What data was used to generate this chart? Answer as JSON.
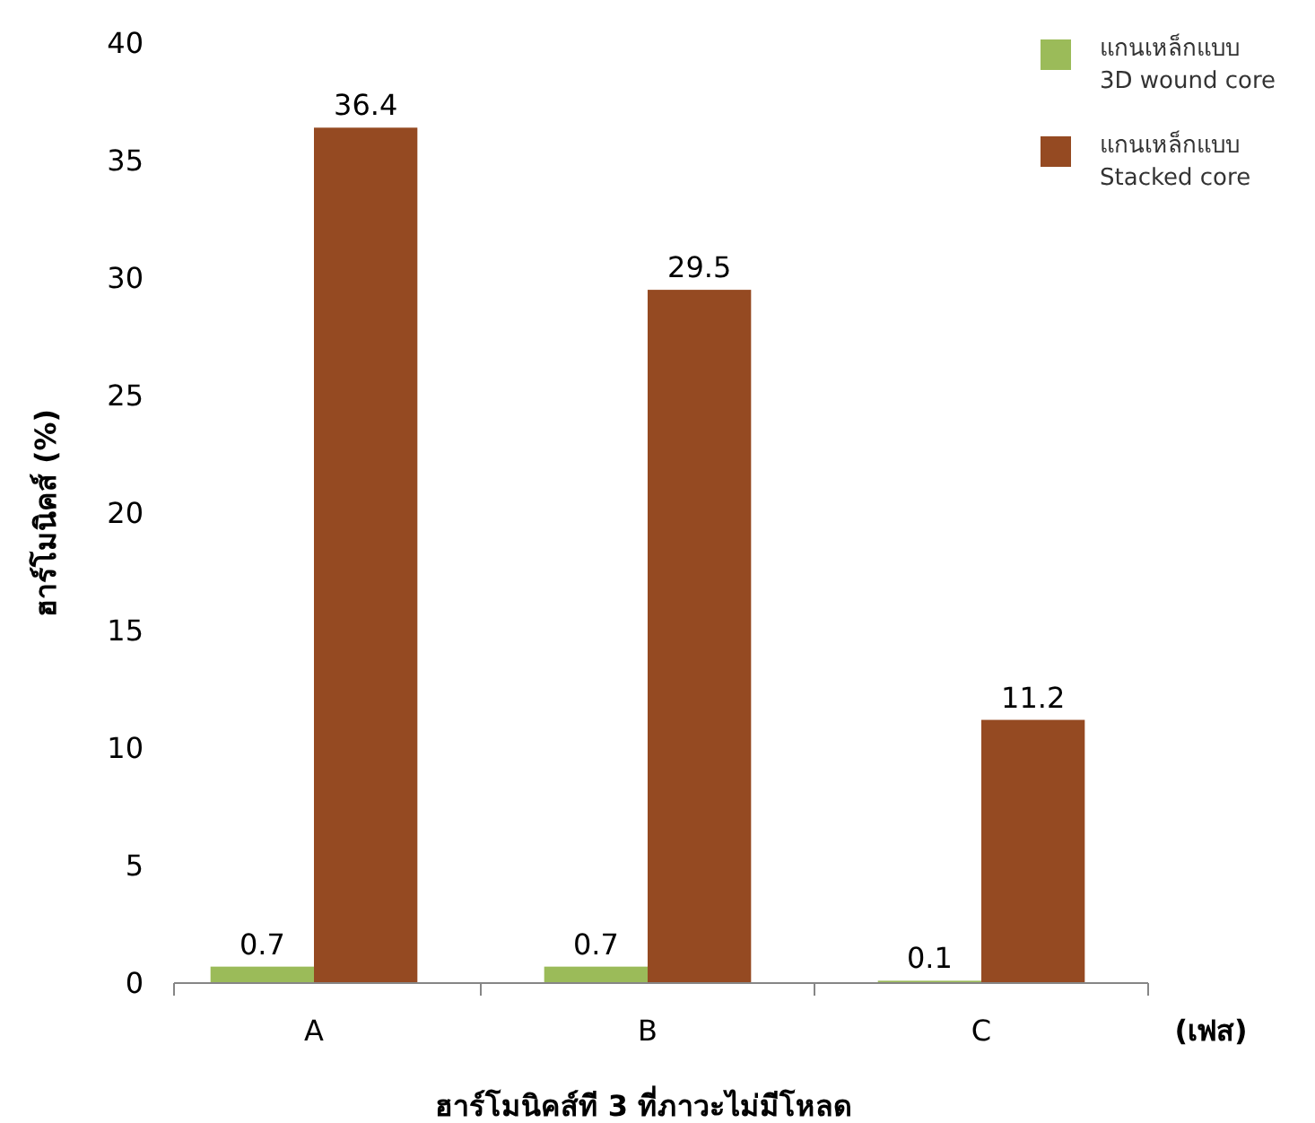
{
  "chart_data": {
    "type": "bar",
    "xlabel": "ฮาร์โมนิคส์ที 3 ที่ภาวะไม่มีโหลด",
    "ylabel": "ฮาร์โมนิคส์ (%)",
    "categories": [
      "A",
      "B",
      "C"
    ],
    "series": [
      {
        "name": "แกนเหล็กแบบ 3D wound core",
        "color": "#9bbb59",
        "values": [
          0.7,
          0.7,
          0.1
        ]
      },
      {
        "name": "แกนเหล็กแบบ Stacked core",
        "color": "#954a22",
        "values": [
          36.4,
          29.5,
          11.2
        ]
      }
    ],
    "ylim": [
      0,
      40
    ],
    "yticks": [
      0,
      5,
      10,
      15,
      20,
      25,
      30,
      35,
      40
    ],
    "data_labels": true,
    "legend": "top right",
    "grid": false,
    "annotations": [
      "(เฟส)"
    ]
  }
}
